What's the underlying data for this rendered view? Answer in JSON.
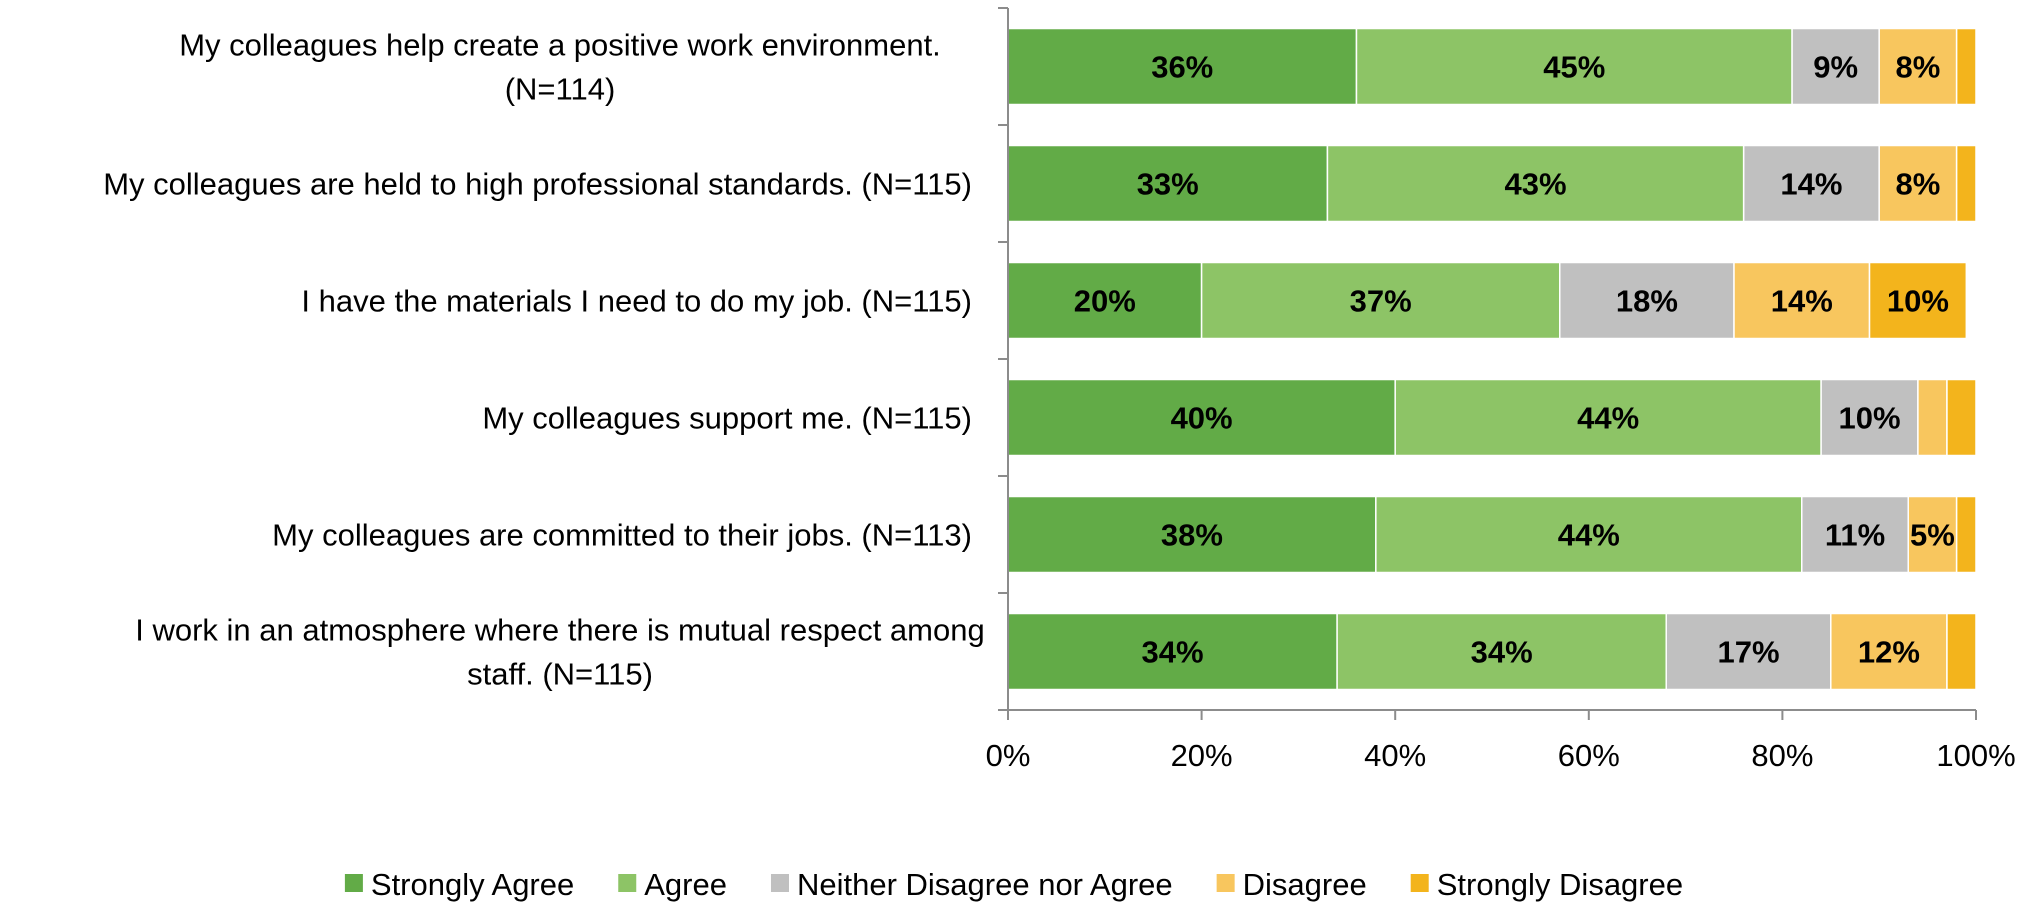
{
  "chart_data": {
    "type": "bar",
    "orientation": "horizontal",
    "stacked": true,
    "categories": [
      [
        "My colleagues help create a positive work environment.",
        "(N=114)"
      ],
      [
        "My colleagues are held to high professional standards. (N=115)"
      ],
      [
        "I have the materials I need to do my job. (N=115)"
      ],
      [
        "My colleagues support me. (N=115)"
      ],
      [
        "My colleagues are committed to their jobs. (N=113)"
      ],
      [
        "I work in an atmosphere where there is mutual respect among",
        "staff. (N=115)"
      ]
    ],
    "series": [
      {
        "name": "Strongly Agree",
        "color": "#62ab47",
        "values": [
          36,
          33,
          20,
          40,
          38,
          34
        ],
        "labels": [
          "36%",
          "33%",
          "20%",
          "40%",
          "38%",
          "34%"
        ]
      },
      {
        "name": "Agree",
        "color": "#8dc466",
        "values": [
          45,
          43,
          37,
          44,
          44,
          34
        ],
        "labels": [
          "45%",
          "43%",
          "37%",
          "44%",
          "44%",
          "34%"
        ]
      },
      {
        "name": "Neither Disagree nor Agree",
        "color": "#c0c0c0",
        "values": [
          9,
          14,
          18,
          10,
          11,
          17
        ],
        "labels": [
          "9%",
          "14%",
          "18%",
          "10%",
          "11%",
          "17%"
        ]
      },
      {
        "name": "Disagree",
        "color": "#f8c65e",
        "values": [
          8,
          8,
          14,
          3,
          5,
          12
        ],
        "labels": [
          "8%",
          "8%",
          "14%",
          "",
          "5%",
          "12%"
        ]
      },
      {
        "name": "Strongly Disagree",
        "color": "#f3b41c",
        "values": [
          2,
          2,
          10,
          3,
          2,
          3
        ],
        "labels": [
          "",
          "",
          "10%",
          "",
          "",
          ""
        ]
      }
    ],
    "xlim": [
      0,
      100
    ],
    "xticks": [
      "0%",
      "20%",
      "40%",
      "60%",
      "80%",
      "100%"
    ],
    "grid": false,
    "legend": "bottom"
  }
}
